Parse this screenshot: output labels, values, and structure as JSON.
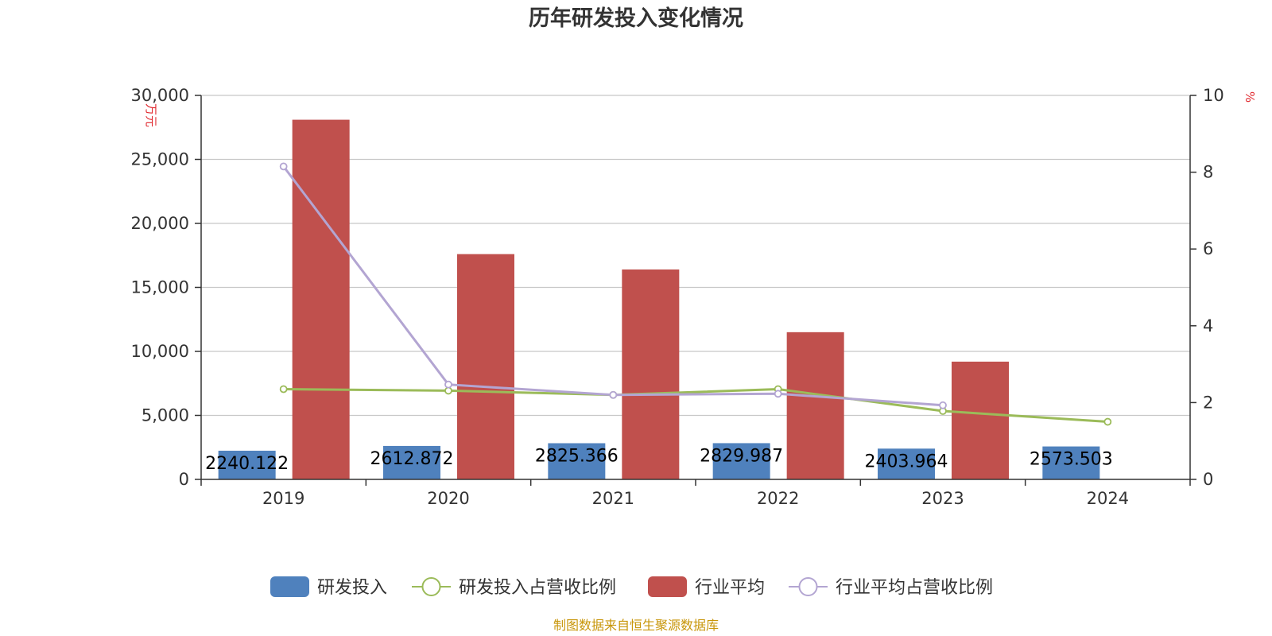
{
  "chart_data": {
    "type": "bar",
    "title": "历年研发投入变化情况",
    "categories": [
      "2019",
      "2020",
      "2021",
      "2022",
      "2023",
      "2024"
    ],
    "y_left": {
      "unit": "万元",
      "min": 0,
      "max": 30000,
      "ticks": [
        "0",
        "5,000",
        "10,000",
        "15,000",
        "20,000",
        "25,000",
        "30,000"
      ],
      "tick_values": [
        0,
        5000,
        10000,
        15000,
        20000,
        25000,
        30000
      ]
    },
    "y_right": {
      "unit": "%",
      "min": 0,
      "max": 10,
      "ticks": [
        "0",
        "2",
        "4",
        "6",
        "8",
        "10"
      ],
      "tick_values": [
        0,
        2,
        4,
        6,
        8,
        10
      ]
    },
    "grid": true,
    "legend_position": "bottom",
    "series": [
      {
        "name": "研发投入",
        "kind": "bar",
        "axis": "left",
        "color": "#4f81bd",
        "values": [
          2240.122,
          2612.872,
          2825.366,
          2829.987,
          2403.964,
          2573.503
        ],
        "labels": [
          "2240.122",
          "2612.872",
          "2825.366",
          "2829.987",
          "2403.964",
          "2573.503"
        ]
      },
      {
        "name": "研发投入占营收比例",
        "kind": "line",
        "axis": "right",
        "color": "#9bbb59",
        "values": [
          2.35,
          2.31,
          2.2,
          2.35,
          1.78,
          1.5
        ]
      },
      {
        "name": "行业平均",
        "kind": "bar",
        "axis": "left",
        "color": "#c0504d",
        "values": [
          28100,
          17600,
          16400,
          11500,
          9200,
          null
        ]
      },
      {
        "name": "行业平均占营收比例",
        "kind": "line",
        "axis": "right",
        "color": "#b3a5d2",
        "values": [
          8.15,
          2.47,
          2.2,
          2.23,
          1.93,
          null
        ]
      }
    ]
  },
  "source": "制图数据来自恒生聚源数据库"
}
